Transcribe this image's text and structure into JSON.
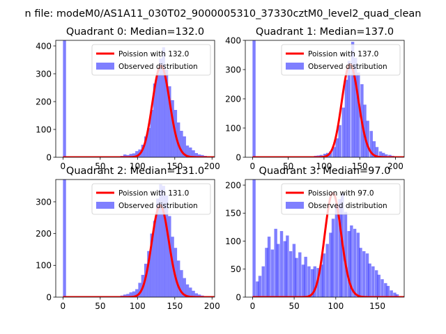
{
  "suptitle": "n file: modeM0/AS1A11_030T02_9000005310_37330cztM0_level2_quad_clean",
  "colors": {
    "observed": "#0000ff",
    "poisson": "#ff0000",
    "axis": "#000000",
    "legend_edge": "#cccccc"
  },
  "chart_data": [
    {
      "type": "bar",
      "title": "Quadrant 0: Median=132.0",
      "x_ticks": [
        0,
        50,
        100,
        150,
        200
      ],
      "y_ticks": [
        0,
        100,
        200,
        300,
        400
      ],
      "xlim": [
        -9.7,
        203.5
      ],
      "ylim": [
        0,
        420
      ],
      "bin_width": 4.1,
      "bins": [
        [
          0,
          420
        ],
        [
          77,
          5
        ],
        [
          81,
          10
        ],
        [
          85,
          8
        ],
        [
          89,
          12
        ],
        [
          93,
          14
        ],
        [
          97,
          22
        ],
        [
          101,
          28
        ],
        [
          105,
          45
        ],
        [
          109,
          75
        ],
        [
          113,
          105
        ],
        [
          117,
          170
        ],
        [
          121,
          265
        ],
        [
          125,
          300
        ],
        [
          129,
          355
        ],
        [
          133,
          395
        ],
        [
          137,
          315
        ],
        [
          141,
          255
        ],
        [
          145,
          205
        ],
        [
          149,
          170
        ],
        [
          153,
          125
        ],
        [
          157,
          95
        ],
        [
          161,
          75
        ],
        [
          165,
          42
        ],
        [
          169,
          35
        ],
        [
          173,
          25
        ],
        [
          177,
          15
        ],
        [
          181,
          10
        ],
        [
          185,
          8
        ],
        [
          189,
          5
        ]
      ],
      "poisson_mean": 132.0,
      "poisson_scale": 9470,
      "legend": [
        {
          "label": "Poission with 132.0",
          "kind": "line"
        },
        {
          "label": "Observed distribution",
          "kind": "patch"
        }
      ]
    },
    {
      "type": "bar",
      "title": "Quadrant 1: Median=137.0",
      "x_ticks": [
        0,
        50,
        100,
        150,
        200
      ],
      "y_ticks": [
        0,
        100,
        200,
        300,
        400
      ],
      "xlim": [
        -10.1,
        212.2
      ],
      "ylim": [
        0,
        400
      ],
      "bin_width": 4.3,
      "bins": [
        [
          0,
          400
        ],
        [
          81,
          3
        ],
        [
          86,
          5
        ],
        [
          90,
          6
        ],
        [
          94,
          8
        ],
        [
          99,
          12
        ],
        [
          103,
          15
        ],
        [
          107,
          20
        ],
        [
          112,
          35
        ],
        [
          116,
          65
        ],
        [
          120,
          110
        ],
        [
          125,
          170
        ],
        [
          129,
          265
        ],
        [
          133,
          330
        ],
        [
          138,
          395
        ],
        [
          142,
          340
        ],
        [
          146,
          290
        ],
        [
          151,
          250
        ],
        [
          155,
          180
        ],
        [
          159,
          125
        ],
        [
          164,
          90
        ],
        [
          168,
          55
        ],
        [
          172,
          35
        ],
        [
          177,
          20
        ],
        [
          181,
          15
        ],
        [
          185,
          10
        ],
        [
          190,
          8
        ],
        [
          194,
          5
        ],
        [
          198,
          3
        ]
      ],
      "poisson_mean": 137.0,
      "poisson_scale": 9320,
      "legend": [
        {
          "label": "Poission with 137.0",
          "kind": "line"
        },
        {
          "label": "Observed distribution",
          "kind": "patch"
        }
      ]
    },
    {
      "type": "bar",
      "title": "Quadrant 2: Median=131.0",
      "x_ticks": [
        0,
        50,
        100,
        150,
        200
      ],
      "y_ticks": [
        0,
        100,
        200,
        300
      ],
      "xlim": [
        -9.7,
        203.5
      ],
      "ylim": [
        0,
        370
      ],
      "bin_width": 4.1,
      "bins": [
        [
          0,
          370
        ],
        [
          73,
          3
        ],
        [
          77,
          5
        ],
        [
          81,
          8
        ],
        [
          85,
          10
        ],
        [
          89,
          15
        ],
        [
          93,
          18
        ],
        [
          97,
          25
        ],
        [
          101,
          45
        ],
        [
          105,
          70
        ],
        [
          109,
          105
        ],
        [
          113,
          145
        ],
        [
          117,
          200
        ],
        [
          121,
          240
        ],
        [
          125,
          310
        ],
        [
          129,
          355
        ],
        [
          133,
          350
        ],
        [
          137,
          320
        ],
        [
          141,
          255
        ],
        [
          145,
          190
        ],
        [
          149,
          155
        ],
        [
          153,
          115
        ],
        [
          157,
          85
        ],
        [
          161,
          60
        ],
        [
          165,
          40
        ],
        [
          169,
          30
        ],
        [
          173,
          20
        ],
        [
          177,
          12
        ],
        [
          181,
          8
        ],
        [
          185,
          5
        ]
      ],
      "poisson_mean": 131.0,
      "poisson_scale": 8290,
      "legend": [
        {
          "label": "Poission with 131.0",
          "kind": "line"
        },
        {
          "label": "Observed distribution",
          "kind": "patch"
        }
      ]
    },
    {
      "type": "bar",
      "title": "Quadrant 3: Median=97.0",
      "x_ticks": [
        0,
        50,
        100,
        150
      ],
      "y_ticks": [
        0,
        50,
        100,
        150,
        200
      ],
      "xlim": [
        -8.7,
        182.2
      ],
      "ylim": [
        0,
        210
      ],
      "bin_width": 3.7,
      "bins": [
        [
          0,
          210
        ],
        [
          4,
          28
        ],
        [
          7,
          38
        ],
        [
          11,
          55
        ],
        [
          15,
          88
        ],
        [
          18,
          108
        ],
        [
          22,
          85
        ],
        [
          26,
          122
        ],
        [
          29,
          95
        ],
        [
          33,
          118
        ],
        [
          37,
          100
        ],
        [
          40,
          110
        ],
        [
          44,
          82
        ],
        [
          48,
          95
        ],
        [
          51,
          70
        ],
        [
          55,
          80
        ],
        [
          59,
          58
        ],
        [
          62,
          72
        ],
        [
          66,
          55
        ],
        [
          70,
          50
        ],
        [
          73,
          55
        ],
        [
          77,
          52
        ],
        [
          81,
          58
        ],
        [
          84,
          78
        ],
        [
          88,
          95
        ],
        [
          92,
          115
        ],
        [
          95,
          140
        ],
        [
          99,
          165
        ],
        [
          103,
          175
        ],
        [
          106,
          185
        ],
        [
          110,
          152
        ],
        [
          114,
          118
        ],
        [
          117,
          128
        ],
        [
          121,
          122
        ],
        [
          125,
          115
        ],
        [
          128,
          88
        ],
        [
          132,
          82
        ],
        [
          136,
          78
        ],
        [
          139,
          60
        ],
        [
          143,
          55
        ],
        [
          147,
          48
        ],
        [
          150,
          40
        ],
        [
          154,
          32
        ],
        [
          158,
          25
        ],
        [
          161,
          20
        ],
        [
          165,
          12
        ],
        [
          169,
          8
        ],
        [
          172,
          5
        ]
      ],
      "poisson_mean": 97.0,
      "poisson_scale": 4590,
      "legend": [
        {
          "label": "Poission with 97.0",
          "kind": "line"
        },
        {
          "label": "Observed distribution",
          "kind": "patch"
        }
      ]
    }
  ]
}
